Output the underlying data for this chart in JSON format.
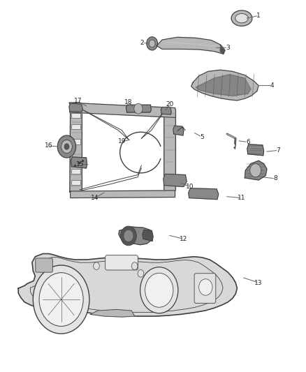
{
  "bg_color": "#ffffff",
  "lc": "#404040",
  "fc_light": "#d8d8d8",
  "fc_mid": "#b8b8b8",
  "fc_dark": "#888888",
  "fc_vdark": "#555555",
  "figsize": [
    4.38,
    5.33
  ],
  "dpi": 100,
  "callouts": {
    "1": {
      "tp": [
        0.845,
        0.958
      ],
      "le": [
        0.8,
        0.95
      ]
    },
    "2": {
      "tp": [
        0.465,
        0.884
      ],
      "le": [
        0.494,
        0.884
      ]
    },
    "3": {
      "tp": [
        0.745,
        0.872
      ],
      "le": [
        0.7,
        0.872
      ]
    },
    "4": {
      "tp": [
        0.89,
        0.77
      ],
      "le": [
        0.84,
        0.77
      ]
    },
    "5": {
      "tp": [
        0.66,
        0.632
      ],
      "le": [
        0.63,
        0.645
      ]
    },
    "6": {
      "tp": [
        0.81,
        0.618
      ],
      "le": [
        0.775,
        0.622
      ]
    },
    "7": {
      "tp": [
        0.91,
        0.596
      ],
      "le": [
        0.865,
        0.592
      ]
    },
    "8": {
      "tp": [
        0.9,
        0.52
      ],
      "le": [
        0.855,
        0.524
      ]
    },
    "10": {
      "tp": [
        0.62,
        0.498
      ],
      "le": [
        0.586,
        0.51
      ]
    },
    "11": {
      "tp": [
        0.79,
        0.468
      ],
      "le": [
        0.735,
        0.472
      ]
    },
    "12": {
      "tp": [
        0.6,
        0.358
      ],
      "le": [
        0.548,
        0.368
      ]
    },
    "13": {
      "tp": [
        0.845,
        0.24
      ],
      "le": [
        0.79,
        0.255
      ]
    },
    "14": {
      "tp": [
        0.31,
        0.468
      ],
      "le": [
        0.345,
        0.484
      ]
    },
    "15": {
      "tp": [
        0.262,
        0.558
      ],
      "le": [
        0.294,
        0.558
      ]
    },
    "16": {
      "tp": [
        0.158,
        0.608
      ],
      "le": [
        0.192,
        0.606
      ]
    },
    "17": {
      "tp": [
        0.255,
        0.728
      ],
      "le": [
        0.288,
        0.712
      ]
    },
    "18": {
      "tp": [
        0.42,
        0.726
      ],
      "le": [
        0.438,
        0.71
      ]
    },
    "19": {
      "tp": [
        0.4,
        0.62
      ],
      "le": [
        0.43,
        0.625
      ]
    },
    "20": {
      "tp": [
        0.555,
        0.72
      ],
      "le": [
        0.538,
        0.7
      ]
    }
  }
}
